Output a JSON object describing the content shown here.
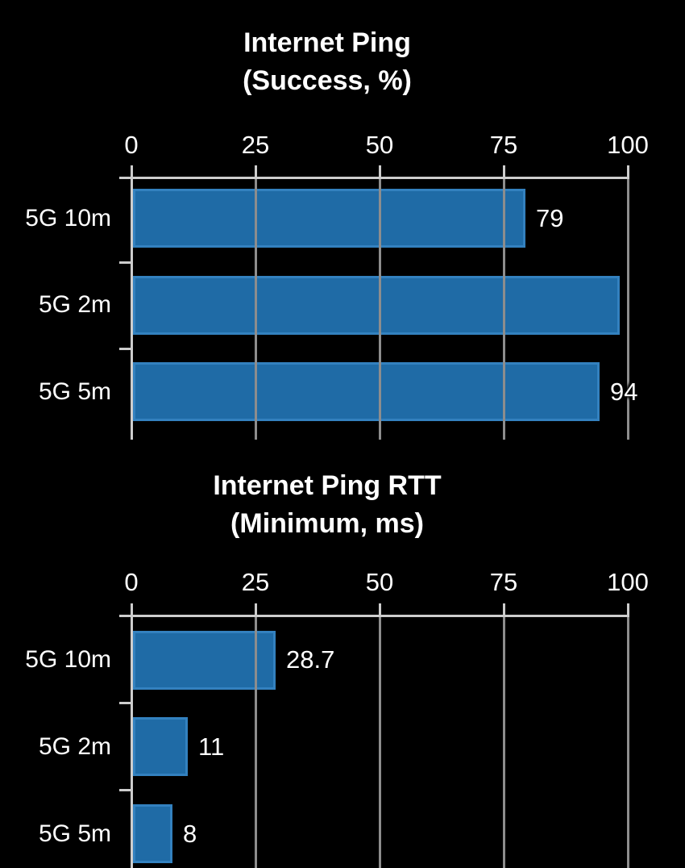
{
  "colors": {
    "background": "#000000",
    "bar_fill": "#1f6ba6",
    "bar_border": "#3381bf",
    "gridline": "#8d8d8d",
    "axis": "#cdcdcd",
    "text": "#ffffff"
  },
  "chart_data": [
    {
      "type": "bar",
      "orientation": "horizontal",
      "title": "Internet Ping\n(Success, %)",
      "categories": [
        "5G 10m",
        "5G 2m",
        "5G 5m"
      ],
      "values": [
        79,
        98,
        94
      ],
      "value_labels": [
        "79",
        "",
        "94"
      ],
      "x_ticks": [
        0,
        25,
        50,
        75,
        100
      ],
      "x_tick_labels": [
        "0",
        "25",
        "50",
        "75",
        "100"
      ],
      "xlim": [
        0,
        100
      ],
      "grid": true,
      "axis_position": "top"
    },
    {
      "type": "bar",
      "orientation": "horizontal",
      "title": "Internet Ping RTT\n(Minimum, ms)",
      "categories": [
        "5G 10m",
        "5G 2m",
        "5G 5m"
      ],
      "values": [
        28.7,
        11,
        8
      ],
      "value_labels": [
        "28.7",
        "11",
        "8"
      ],
      "x_ticks": [
        0,
        25,
        50,
        75,
        100
      ],
      "x_tick_labels": [
        "0",
        "25",
        "50",
        "75",
        "100"
      ],
      "xlim": [
        0,
        100
      ],
      "grid": true,
      "axis_position": "top"
    }
  ]
}
